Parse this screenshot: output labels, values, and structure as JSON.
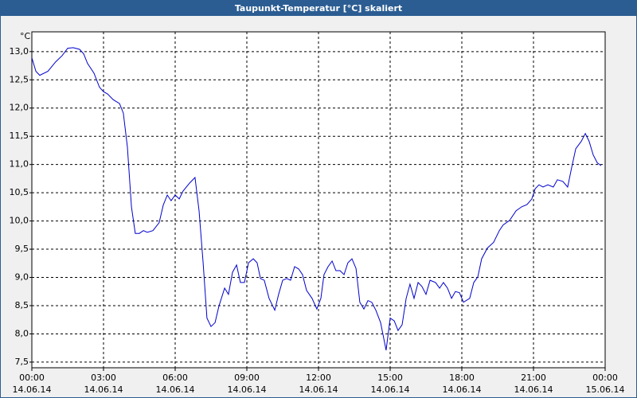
{
  "chart_data": {
    "type": "line",
    "title": "Taupunkt-Temperatur [°C] skaliert",
    "y_label": "°C",
    "x": [
      0,
      0.17,
      0.33,
      0.67,
      1.0,
      1.27,
      1.5,
      1.73,
      2.0,
      2.17,
      2.33,
      2.6,
      2.83,
      3.0,
      3.17,
      3.4,
      3.67,
      3.83,
      4.0,
      4.17,
      4.33,
      4.5,
      4.67,
      4.83,
      5.07,
      5.33,
      5.5,
      5.67,
      5.83,
      6.0,
      6.17,
      6.33,
      6.6,
      6.83,
      7.0,
      7.17,
      7.33,
      7.5,
      7.67,
      7.83,
      8.07,
      8.23,
      8.4,
      8.57,
      8.73,
      8.9,
      9.07,
      9.27,
      9.43,
      9.57,
      9.73,
      9.93,
      10.17,
      10.33,
      10.5,
      10.67,
      10.83,
      11.0,
      11.17,
      11.33,
      11.5,
      11.73,
      11.93,
      12.1,
      12.23,
      12.4,
      12.57,
      12.73,
      12.9,
      13.07,
      13.23,
      13.4,
      13.57,
      13.73,
      13.9,
      14.07,
      14.23,
      14.4,
      14.6,
      14.83,
      15.0,
      15.17,
      15.33,
      15.5,
      15.67,
      15.83,
      16.0,
      16.17,
      16.33,
      16.5,
      16.67,
      16.9,
      17.07,
      17.23,
      17.4,
      17.57,
      17.73,
      17.9,
      18.07,
      18.33,
      18.5,
      18.67,
      18.83,
      19.07,
      19.33,
      19.57,
      19.73,
      20.0,
      20.27,
      20.5,
      20.73,
      20.93,
      21.07,
      21.23,
      21.4,
      21.6,
      21.83,
      22.0,
      22.23,
      22.43,
      22.6,
      22.77,
      23.0,
      23.17,
      23.33,
      23.5,
      23.67,
      23.83
    ],
    "series": [
      {
        "name": "Taupunkt-Temperatur",
        "color": "#0000cc",
        "values": [
          12.89,
          12.65,
          12.58,
          12.65,
          12.82,
          12.93,
          13.06,
          13.07,
          13.04,
          12.96,
          12.79,
          12.62,
          12.37,
          12.29,
          12.25,
          12.15,
          12.08,
          11.91,
          11.31,
          10.25,
          9.78,
          9.78,
          9.83,
          9.8,
          9.83,
          9.97,
          10.28,
          10.46,
          10.36,
          10.46,
          10.39,
          10.53,
          10.67,
          10.77,
          10.18,
          9.26,
          8.28,
          8.13,
          8.2,
          8.49,
          8.81,
          8.7,
          9.09,
          9.22,
          8.91,
          8.91,
          9.26,
          9.33,
          9.26,
          8.98,
          8.95,
          8.63,
          8.42,
          8.7,
          8.95,
          8.98,
          8.95,
          9.19,
          9.15,
          9.05,
          8.77,
          8.63,
          8.44,
          8.63,
          9.05,
          9.19,
          9.29,
          9.12,
          9.12,
          9.05,
          9.26,
          9.33,
          9.16,
          8.56,
          8.44,
          8.59,
          8.56,
          8.42,
          8.2,
          7.71,
          8.28,
          8.23,
          8.06,
          8.16,
          8.63,
          8.88,
          8.63,
          8.91,
          8.84,
          8.7,
          8.95,
          8.91,
          8.81,
          8.91,
          8.81,
          8.63,
          8.75,
          8.73,
          8.56,
          8.63,
          8.91,
          9.01,
          9.33,
          9.52,
          9.62,
          9.83,
          9.93,
          10.01,
          10.18,
          10.25,
          10.29,
          10.39,
          10.57,
          10.64,
          10.6,
          10.64,
          10.6,
          10.73,
          10.7,
          10.6,
          10.95,
          11.28,
          11.41,
          11.55,
          11.41,
          11.17,
          11.03,
          10.98
        ]
      }
    ],
    "xlim": [
      0,
      24
    ],
    "ylim": [
      7.4,
      13.35
    ],
    "xticks": [
      {
        "value": 0,
        "label": "00:00"
      },
      {
        "value": 3,
        "label": "03:00"
      },
      {
        "value": 6,
        "label": "06:00"
      },
      {
        "value": 9,
        "label": "09:00"
      },
      {
        "value": 12,
        "label": "12:00"
      },
      {
        "value": 15,
        "label": "15:00"
      },
      {
        "value": 18,
        "label": "18:00"
      },
      {
        "value": 21,
        "label": "21:00"
      },
      {
        "value": 24,
        "label": "00:00"
      }
    ],
    "xtick_dates": [
      "14.06.14",
      "14.06.14",
      "14.06.14",
      "14.06.14",
      "14.06.14",
      "14.06.14",
      "14.06.14",
      "14.06.14",
      "15.06.14"
    ],
    "yticks": [
      {
        "value": 7.5,
        "label": "7,5"
      },
      {
        "value": 8,
        "label": "8,0"
      },
      {
        "value": 8.5,
        "label": "8,5"
      },
      {
        "value": 9,
        "label": "9,0"
      },
      {
        "value": 9.5,
        "label": "9,5"
      },
      {
        "value": 10,
        "label": "10,0"
      },
      {
        "value": 10.5,
        "label": "10,5"
      },
      {
        "value": 11,
        "label": "11,0"
      },
      {
        "value": 11.5,
        "label": "11,5"
      },
      {
        "value": 12,
        "label": "12,0"
      },
      {
        "value": 12.5,
        "label": "12,5"
      },
      {
        "value": 13,
        "label": "13,0"
      }
    ],
    "grid": true
  }
}
